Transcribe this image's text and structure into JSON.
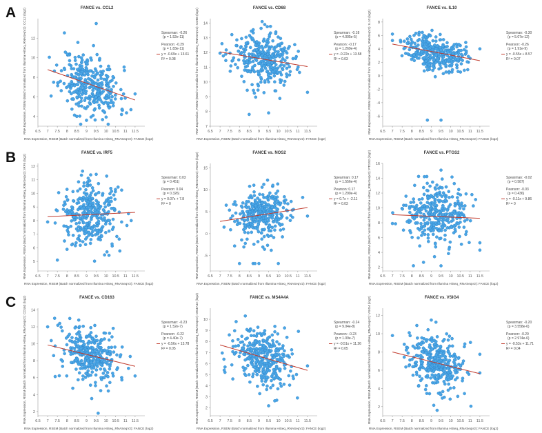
{
  "row_labels": [
    "A",
    "B",
    "C"
  ],
  "xlabel": "RNA Expression, RSEM (Batch normalized from Illumina HiSeq_RNASeqV2): FANCE (log2)",
  "colors": {
    "dot": "#4aa6e6",
    "fit": "#c0392b"
  },
  "chart_data": [
    {
      "type": "scatter",
      "title": "FANCE vs. CCL2",
      "ylabel": "RNA Expression, RSEM (Batch normalized from Illumina HiSeq_RNASeqV2): CCL2 (log2)",
      "xlim": [
        6.5,
        12
      ],
      "ylim": [
        3,
        14
      ],
      "xticks": [
        6.5,
        7,
        7.5,
        8,
        8.5,
        9,
        9.5,
        10,
        10.5,
        11,
        11.5
      ],
      "yticks": [
        4,
        6,
        8,
        10,
        12
      ],
      "slope": -0.69,
      "intercept": 13.61,
      "xcenter": 9.2,
      "xsd": 0.75,
      "ysd": 1.5,
      "n": 330,
      "seed": 11,
      "outliers": [
        [
          9.5,
          13.5
        ],
        [
          8.5,
          4.0
        ],
        [
          9.0,
          3.6
        ],
        [
          10.8,
          4.2
        ],
        [
          11.5,
          6.3
        ]
      ],
      "stats": [
        "Spearman: -0.26",
        "(p = 1.52e-11)",
        "Pearson: -0.29",
        "(p = 1.83e-11)",
        "y = -0.69x + 13.61",
        "R² = 0.08"
      ]
    },
    {
      "type": "scatter",
      "title": "FANCE vs. CD68",
      "ylabel": "RNA Expression, RSEM (Batch normalized from Illumina HiSeq_RNASeqV2): CD68 (log2)",
      "xlim": [
        6.5,
        12
      ],
      "ylim": [
        7,
        14.3
      ],
      "xticks": [
        6.5,
        7,
        7.5,
        8,
        8.5,
        9,
        9.5,
        10,
        10.5,
        11,
        11.5
      ],
      "yticks": [
        7,
        8,
        9,
        10,
        11,
        12,
        13,
        14
      ],
      "slope": -0.22,
      "intercept": 13.58,
      "xcenter": 9.2,
      "xsd": 0.75,
      "ysd": 0.9,
      "n": 330,
      "seed": 23,
      "outliers": [
        [
          8.5,
          7.8
        ],
        [
          9.5,
          7.9
        ],
        [
          9.3,
          13.9
        ],
        [
          11.5,
          9.3
        ],
        [
          7.1,
          12.6
        ]
      ],
      "stats": [
        "Spearman: -0.18",
        "(p = 4.005e-5)",
        "Pearson: -0.17",
        "(p = 1.269e-4)",
        "y = -0.22x + 13.58",
        "R² = 0.03"
      ]
    },
    {
      "type": "scatter",
      "title": "FANCE vs. IL10",
      "ylabel": "RNA Expression, RSEM (Batch normalized from Illumina HiSeq_RNASeqV2): IL10 (log2)",
      "xlim": [
        6.5,
        12
      ],
      "ylim": [
        -7.5,
        8.5
      ],
      "xticks": [
        6.5,
        7,
        7.5,
        8,
        8.5,
        9,
        9.5,
        10,
        10.5,
        11,
        11.5
      ],
      "yticks": [
        -6,
        -4,
        -2,
        0,
        2,
        4,
        6,
        8
      ],
      "slope": -0.55,
      "intercept": 8.57,
      "xcenter": 9.2,
      "xsd": 0.75,
      "ysd": 1.3,
      "n": 330,
      "seed": 37,
      "outliers": [
        [
          8.8,
          -6.6
        ],
        [
          9.5,
          -6.6
        ],
        [
          11.5,
          4.0
        ],
        [
          7.0,
          6.2
        ]
      ],
      "stats": [
        "Spearman: -0.30",
        "(p = 5.07e-12)",
        "Pearson: -0.26",
        "(p = 1.91e-9)",
        "y = -0.55x + 8.57",
        "R² = 0.07"
      ]
    },
    {
      "type": "scatter",
      "title": "FANCE vs. IRF5",
      "ylabel": "RNA Expression, RSEM (Batch normalized from Illumina HiSeq_RNASeqV2): IRF5 (log2)",
      "xlim": [
        6.5,
        12
      ],
      "ylim": [
        4.3,
        12.2
      ],
      "xticks": [
        6.5,
        7,
        7.5,
        8,
        8.5,
        9,
        9.5,
        10,
        10.5,
        11,
        11.5
      ],
      "yticks": [
        5,
        6,
        7,
        8,
        9,
        10,
        11,
        12
      ],
      "slope": 0.07,
      "intercept": 7.8,
      "xcenter": 9.2,
      "xsd": 0.75,
      "ysd": 1.2,
      "n": 330,
      "seed": 41,
      "outliers": [
        [
          7.5,
          5.1
        ],
        [
          9.5,
          11.4
        ],
        [
          11.3,
          8.0
        ],
        [
          7.0,
          7.9
        ]
      ],
      "stats": [
        "Spearman: 0.03",
        "(p = 0.451)",
        "Pearson: 0.04",
        "(p = 0.326)",
        "y = 0.07x + 7.8",
        "R² = 0"
      ]
    },
    {
      "type": "scatter",
      "title": "FANCE vs. NOS2",
      "ylabel": "RNA Expression, RSEM (Batch normalized from Illumina HiSeq_RNASeqV2): NOS2 (log2)",
      "xlim": [
        6.5,
        12
      ],
      "ylim": [
        -8.5,
        16
      ],
      "xticks": [
        6.5,
        7,
        7.5,
        8,
        8.5,
        9,
        9.5,
        10,
        10.5,
        11,
        11.5
      ],
      "yticks": [
        -5,
        0,
        5,
        10,
        15
      ],
      "slope": 0.7,
      "intercept": -2.11,
      "xcenter": 9.2,
      "xsd": 0.75,
      "ysd": 2.8,
      "n": 330,
      "seed": 53,
      "outliers": [
        [
          8.0,
          -6.8
        ],
        [
          8.7,
          -6.8
        ],
        [
          8.8,
          -6.8
        ],
        [
          9.0,
          -6.8
        ],
        [
          10.0,
          -6.8
        ],
        [
          11.5,
          4.0
        ]
      ],
      "stats": [
        "Spearman: 0.17",
        "(p = 1.556e-4)",
        "Pearson: 0.17",
        "(p = 1.290e-4)",
        "y = 0.7x + -2.11",
        "R² = 0.03"
      ]
    },
    {
      "type": "scatter",
      "title": "FANCE vs. PTGS2",
      "ylabel": "RNA Expression, RSEM (Batch normalized from Illumina HiSeq_RNASeqV2): PTGS2 (log2)",
      "xlim": [
        6.5,
        12
      ],
      "ylim": [
        1.5,
        16
      ],
      "xticks": [
        6.5,
        7,
        7.5,
        8,
        8.5,
        9,
        9.5,
        10,
        10.5,
        11,
        11.5
      ],
      "yticks": [
        2,
        4,
        6,
        8,
        10,
        12,
        14,
        16
      ],
      "slope": -0.11,
      "intercept": 9.86,
      "xcenter": 9.2,
      "xsd": 0.75,
      "ysd": 2.0,
      "n": 330,
      "seed": 67,
      "outliers": [
        [
          9.5,
          2.2
        ],
        [
          9.5,
          15.1
        ],
        [
          11.5,
          5.3
        ],
        [
          7.0,
          7.9
        ]
      ],
      "stats": [
        "Spearman: -0.02",
        "(p = 0.587)",
        "Pearson: -0.03",
        "(p = 0.436)",
        "y = -0.11x + 9.86",
        "R² = 0"
      ]
    },
    {
      "type": "scatter",
      "title": "FANCE vs. CD163",
      "ylabel": "RNA Expression, RSEM (Batch normalized from Illumina HiSeq_RNASeqV2): CD163 (log2)",
      "xlim": [
        6.5,
        12
      ],
      "ylim": [
        1.5,
        14.2
      ],
      "xticks": [
        6.5,
        7,
        7.5,
        8,
        8.5,
        9,
        9.5,
        10,
        10.5,
        11,
        11.5
      ],
      "yticks": [
        2,
        4,
        6,
        8,
        10,
        12,
        14
      ],
      "slope": -0.56,
      "intercept": 13.78,
      "xcenter": 9.2,
      "xsd": 0.75,
      "ysd": 1.6,
      "n": 330,
      "seed": 71,
      "outliers": [
        [
          9.6,
          1.8
        ],
        [
          8.6,
          12.8
        ],
        [
          11.5,
          6.2
        ],
        [
          7.0,
          12.0
        ]
      ],
      "stats": [
        "Spearman: -0.23",
        "(p = 1.52e-7)",
        "Pearson: -0.22",
        "(p = 4.40e-7)",
        "y = -0.56x + 13.78",
        "R² = 0.05"
      ]
    },
    {
      "type": "scatter",
      "title": "FANCE vs. MS4A4A",
      "ylabel": "RNA Expression, RSEM (Batch normalized from Illumina HiSeq_RNASeqV2): MS4A4A (log2)",
      "xlim": [
        6.5,
        12
      ],
      "ylim": [
        1.3,
        11
      ],
      "xticks": [
        6.5,
        7,
        7.5,
        8,
        8.5,
        9,
        9.5,
        10,
        10.5,
        11,
        11.5
      ],
      "yticks": [
        2,
        3,
        4,
        5,
        6,
        7,
        8,
        9,
        10
      ],
      "slope": -0.51,
      "intercept": 11.26,
      "xcenter": 9.2,
      "xsd": 0.75,
      "ysd": 1.3,
      "n": 330,
      "seed": 83,
      "outliers": [
        [
          9.5,
          2.2
        ],
        [
          8.3,
          10.3
        ],
        [
          11.5,
          5.8
        ],
        [
          7.2,
          6.4
        ]
      ],
      "stats": [
        "Spearman: -0.24",
        "(p = 9.04e-8)",
        "Pearson: -0.23",
        "(p = 1.09e-7)",
        "y = -0.51x + 11.26",
        "R² = 0.05"
      ]
    },
    {
      "type": "scatter",
      "title": "FANCE vs. VSIG4",
      "ylabel": "RNA Expression, RSEM (Batch normalized from Illumina HiSeq_RNASeqV2): VSIG4 (log2)",
      "xlim": [
        6.5,
        12
      ],
      "ylim": [
        1,
        12.8
      ],
      "xticks": [
        6.5,
        7,
        7.5,
        8,
        8.5,
        9,
        9.5,
        10,
        10.5,
        11,
        11.5
      ],
      "yticks": [
        2,
        4,
        6,
        8,
        10,
        12
      ],
      "slope": -0.53,
      "intercept": 11.71,
      "xcenter": 9.2,
      "xsd": 0.75,
      "ysd": 1.6,
      "n": 330,
      "seed": 97,
      "outliers": [
        [
          9.3,
          1.6
        ],
        [
          9.0,
          11.5
        ],
        [
          11.5,
          5.7
        ],
        [
          7.0,
          9.8
        ]
      ],
      "stats": [
        "Spearman: -0.20",
        "(p = 3.558e-6)",
        "Pearson: -0.20",
        "(p = 2.974e-6)",
        "y = -0.53x + 11.71",
        "R² = 0.04"
      ]
    }
  ]
}
